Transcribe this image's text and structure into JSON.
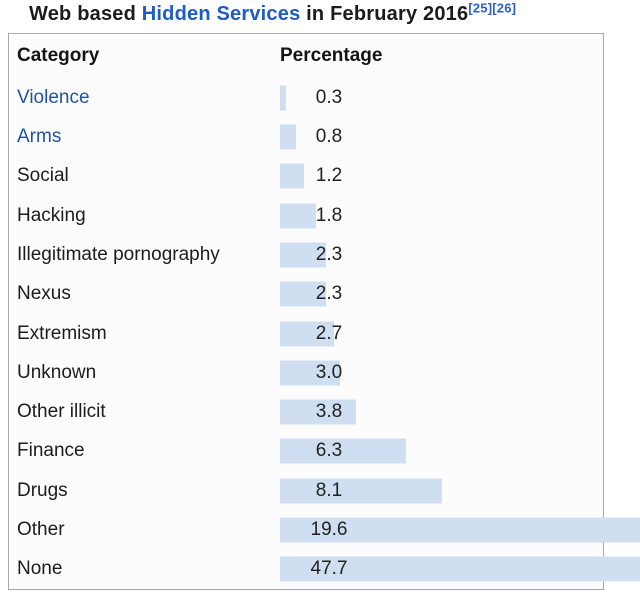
{
  "title": {
    "prefix": "Web based ",
    "link_text": "Hidden Services",
    "suffix": " in February 2016",
    "refs": [
      "[25]",
      "[26]"
    ]
  },
  "table": {
    "headers": {
      "category": "Category",
      "percentage": "Percentage"
    }
  },
  "chart_data": {
    "type": "bar",
    "orientation": "horizontal",
    "title": "Web based Hidden Services in February 2016",
    "xlabel": "Percentage",
    "ylabel": "Category",
    "xlim": [
      0,
      50
    ],
    "grid": false,
    "categories": [
      "Violence",
      "Arms",
      "Social",
      "Hacking",
      "Illegitimate pornography",
      "Nexus",
      "Extremism",
      "Unknown",
      "Other illicit",
      "Finance",
      "Drugs",
      "Other",
      "None"
    ],
    "values": [
      0.3,
      0.8,
      1.2,
      1.8,
      2.3,
      2.3,
      2.7,
      3.0,
      3.8,
      6.3,
      8.1,
      19.6,
      47.7
    ],
    "value_labels": [
      "0.3",
      "0.8",
      "1.2",
      "1.8",
      "2.3",
      "2.3",
      "2.7",
      "3.0",
      "3.8",
      "6.3",
      "8.1",
      "19.6",
      "47.7"
    ],
    "linked_categories": [
      true,
      true,
      false,
      false,
      false,
      false,
      false,
      false,
      false,
      false,
      false,
      false,
      false
    ],
    "bar_color": "#cfdff1"
  },
  "colors": {
    "bar": "#cfdff1",
    "row_link": "#2152a3",
    "title_link": "#1f5bc8",
    "ref_link": "#2b5fc8",
    "text": "#1c1c1c",
    "border": "#a6a9ad",
    "table_background": "#fcfcfd"
  }
}
